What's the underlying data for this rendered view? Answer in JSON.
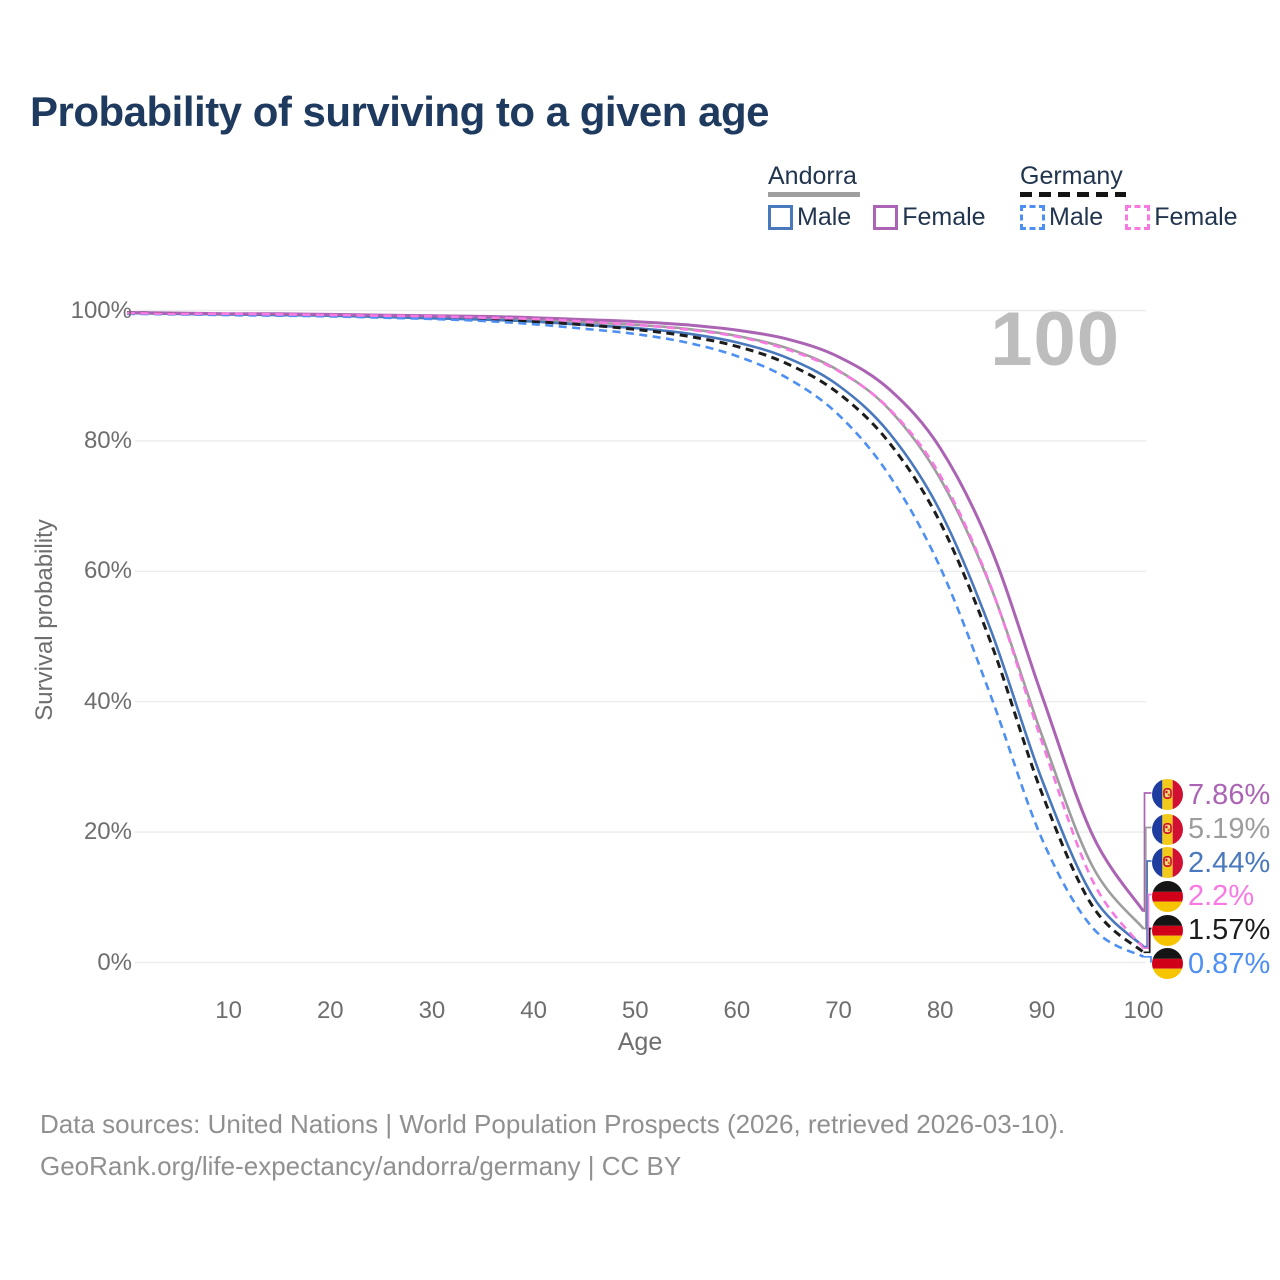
{
  "title": "Probability of surviving to a given age",
  "watermark": "100",
  "legend": {
    "groups": [
      {
        "label": "Andorra",
        "line_style": "solid",
        "rule_color": "#9f9f9f",
        "items": [
          {
            "label": "Male",
            "color": "#4a78bc"
          },
          {
            "label": "Female",
            "color": "#ab64b4"
          }
        ]
      },
      {
        "label": "Germany",
        "line_style": "dashed",
        "rule_color": "#141414",
        "items": [
          {
            "label": "Male",
            "color": "#4d8ff2"
          },
          {
            "label": "Female",
            "color": "#f879e2"
          }
        ]
      }
    ]
  },
  "chart_data": {
    "type": "line",
    "title": "Probability of surviving to a given age",
    "xlabel": "Age",
    "ylabel": "Survival probability",
    "xlim": [
      0,
      100
    ],
    "ylim": [
      0,
      100
    ],
    "grid": true,
    "legend_position": "top-right",
    "xticks": [
      10,
      20,
      30,
      40,
      50,
      60,
      70,
      80,
      90,
      100
    ],
    "yticks": [
      {
        "value": 0,
        "label": "0%"
      },
      {
        "value": 20,
        "label": "20%"
      },
      {
        "value": 40,
        "label": "40%"
      },
      {
        "value": 60,
        "label": "60%"
      },
      {
        "value": 80,
        "label": "80%"
      },
      {
        "value": 100,
        "label": "100%"
      }
    ],
    "x": [
      0,
      5,
      10,
      15,
      20,
      25,
      30,
      35,
      40,
      45,
      50,
      55,
      60,
      65,
      70,
      75,
      80,
      85,
      90,
      95,
      100
    ],
    "series": [
      {
        "name": "Andorra (both sexes)",
        "country": "Andorra",
        "color": "#9d9d9d",
        "dashed": false,
        "values": [
          99.6,
          99.5,
          99.4,
          99.4,
          99.3,
          99.2,
          99.0,
          98.8,
          98.6,
          98.2,
          97.8,
          97.2,
          96.1,
          94.2,
          90.8,
          84.8,
          74.2,
          57.5,
          34.9,
          14.7,
          5.19
        ]
      },
      {
        "name": "Andorra Male",
        "country": "Andorra",
        "color": "#4a78bc",
        "dashed": false,
        "values": [
          99.6,
          99.5,
          99.4,
          99.3,
          99.2,
          99.0,
          98.8,
          98.6,
          98.3,
          97.8,
          97.3,
          96.5,
          95.1,
          92.7,
          88.5,
          81.2,
          69.2,
          50.9,
          28.1,
          10.2,
          2.44
        ]
      },
      {
        "name": "Andorra Female",
        "country": "Andorra",
        "color": "#ab64b4",
        "dashed": false,
        "values": [
          99.7,
          99.6,
          99.5,
          99.5,
          99.4,
          99.3,
          99.2,
          99.1,
          98.9,
          98.6,
          98.3,
          97.8,
          97.0,
          95.6,
          92.9,
          87.9,
          78.9,
          63.5,
          41.0,
          19.5,
          7.86
        ]
      },
      {
        "name": "Germany (both sexes)",
        "country": "Germany",
        "color": "#1c1c1c",
        "dashed": true,
        "values": [
          99.6,
          99.5,
          99.4,
          99.3,
          99.2,
          99.0,
          98.9,
          98.6,
          98.3,
          97.8,
          97.1,
          96.1,
          94.5,
          91.8,
          87.3,
          79.7,
          67.5,
          49.0,
          26.0,
          8.6,
          1.57
        ]
      },
      {
        "name": "Germany Male",
        "country": "Germany",
        "color": "#4d8ff2",
        "dashed": true,
        "values": [
          99.5,
          99.4,
          99.3,
          99.2,
          99.1,
          98.9,
          98.7,
          98.4,
          97.9,
          97.2,
          96.4,
          95.1,
          93.0,
          89.6,
          84.0,
          74.7,
          60.6,
          40.8,
          19.0,
          5.3,
          0.87
        ]
      },
      {
        "name": "Germany Female",
        "country": "Germany",
        "color": "#f879e2",
        "dashed": true,
        "values": [
          99.6,
          99.5,
          99.5,
          99.4,
          99.3,
          99.2,
          99.1,
          98.9,
          98.7,
          98.3,
          97.8,
          97.1,
          96.0,
          94.0,
          90.7,
          84.9,
          74.7,
          57.6,
          33.9,
          12.5,
          2.2
        ]
      }
    ],
    "end_labels": [
      {
        "text": "7.86%",
        "series": "Andorra Female",
        "flag": "andorra",
        "color": "#ab64b4"
      },
      {
        "text": "5.19%",
        "series": "Andorra (both sexes)",
        "flag": "andorra",
        "color": "#9d9d9d"
      },
      {
        "text": "2.44%",
        "series": "Andorra Male",
        "flag": "andorra",
        "color": "#4a78bc"
      },
      {
        "text": "2.2%",
        "series": "Germany Female",
        "flag": "germany",
        "color": "#f879e2"
      },
      {
        "text": "1.57%",
        "series": "Germany (both sexes)",
        "flag": "germany",
        "color": "#1c1c1c"
      },
      {
        "text": "0.87%",
        "series": "Germany Male",
        "flag": "germany",
        "color": "#4d8ff2"
      }
    ]
  },
  "footer": {
    "line1": "Data sources: United Nations | World Population Prospects (2026, retrieved 2026-03-10).",
    "line2": "GeoRank.org/life-expectancy/andorra/germany | CC BY"
  }
}
